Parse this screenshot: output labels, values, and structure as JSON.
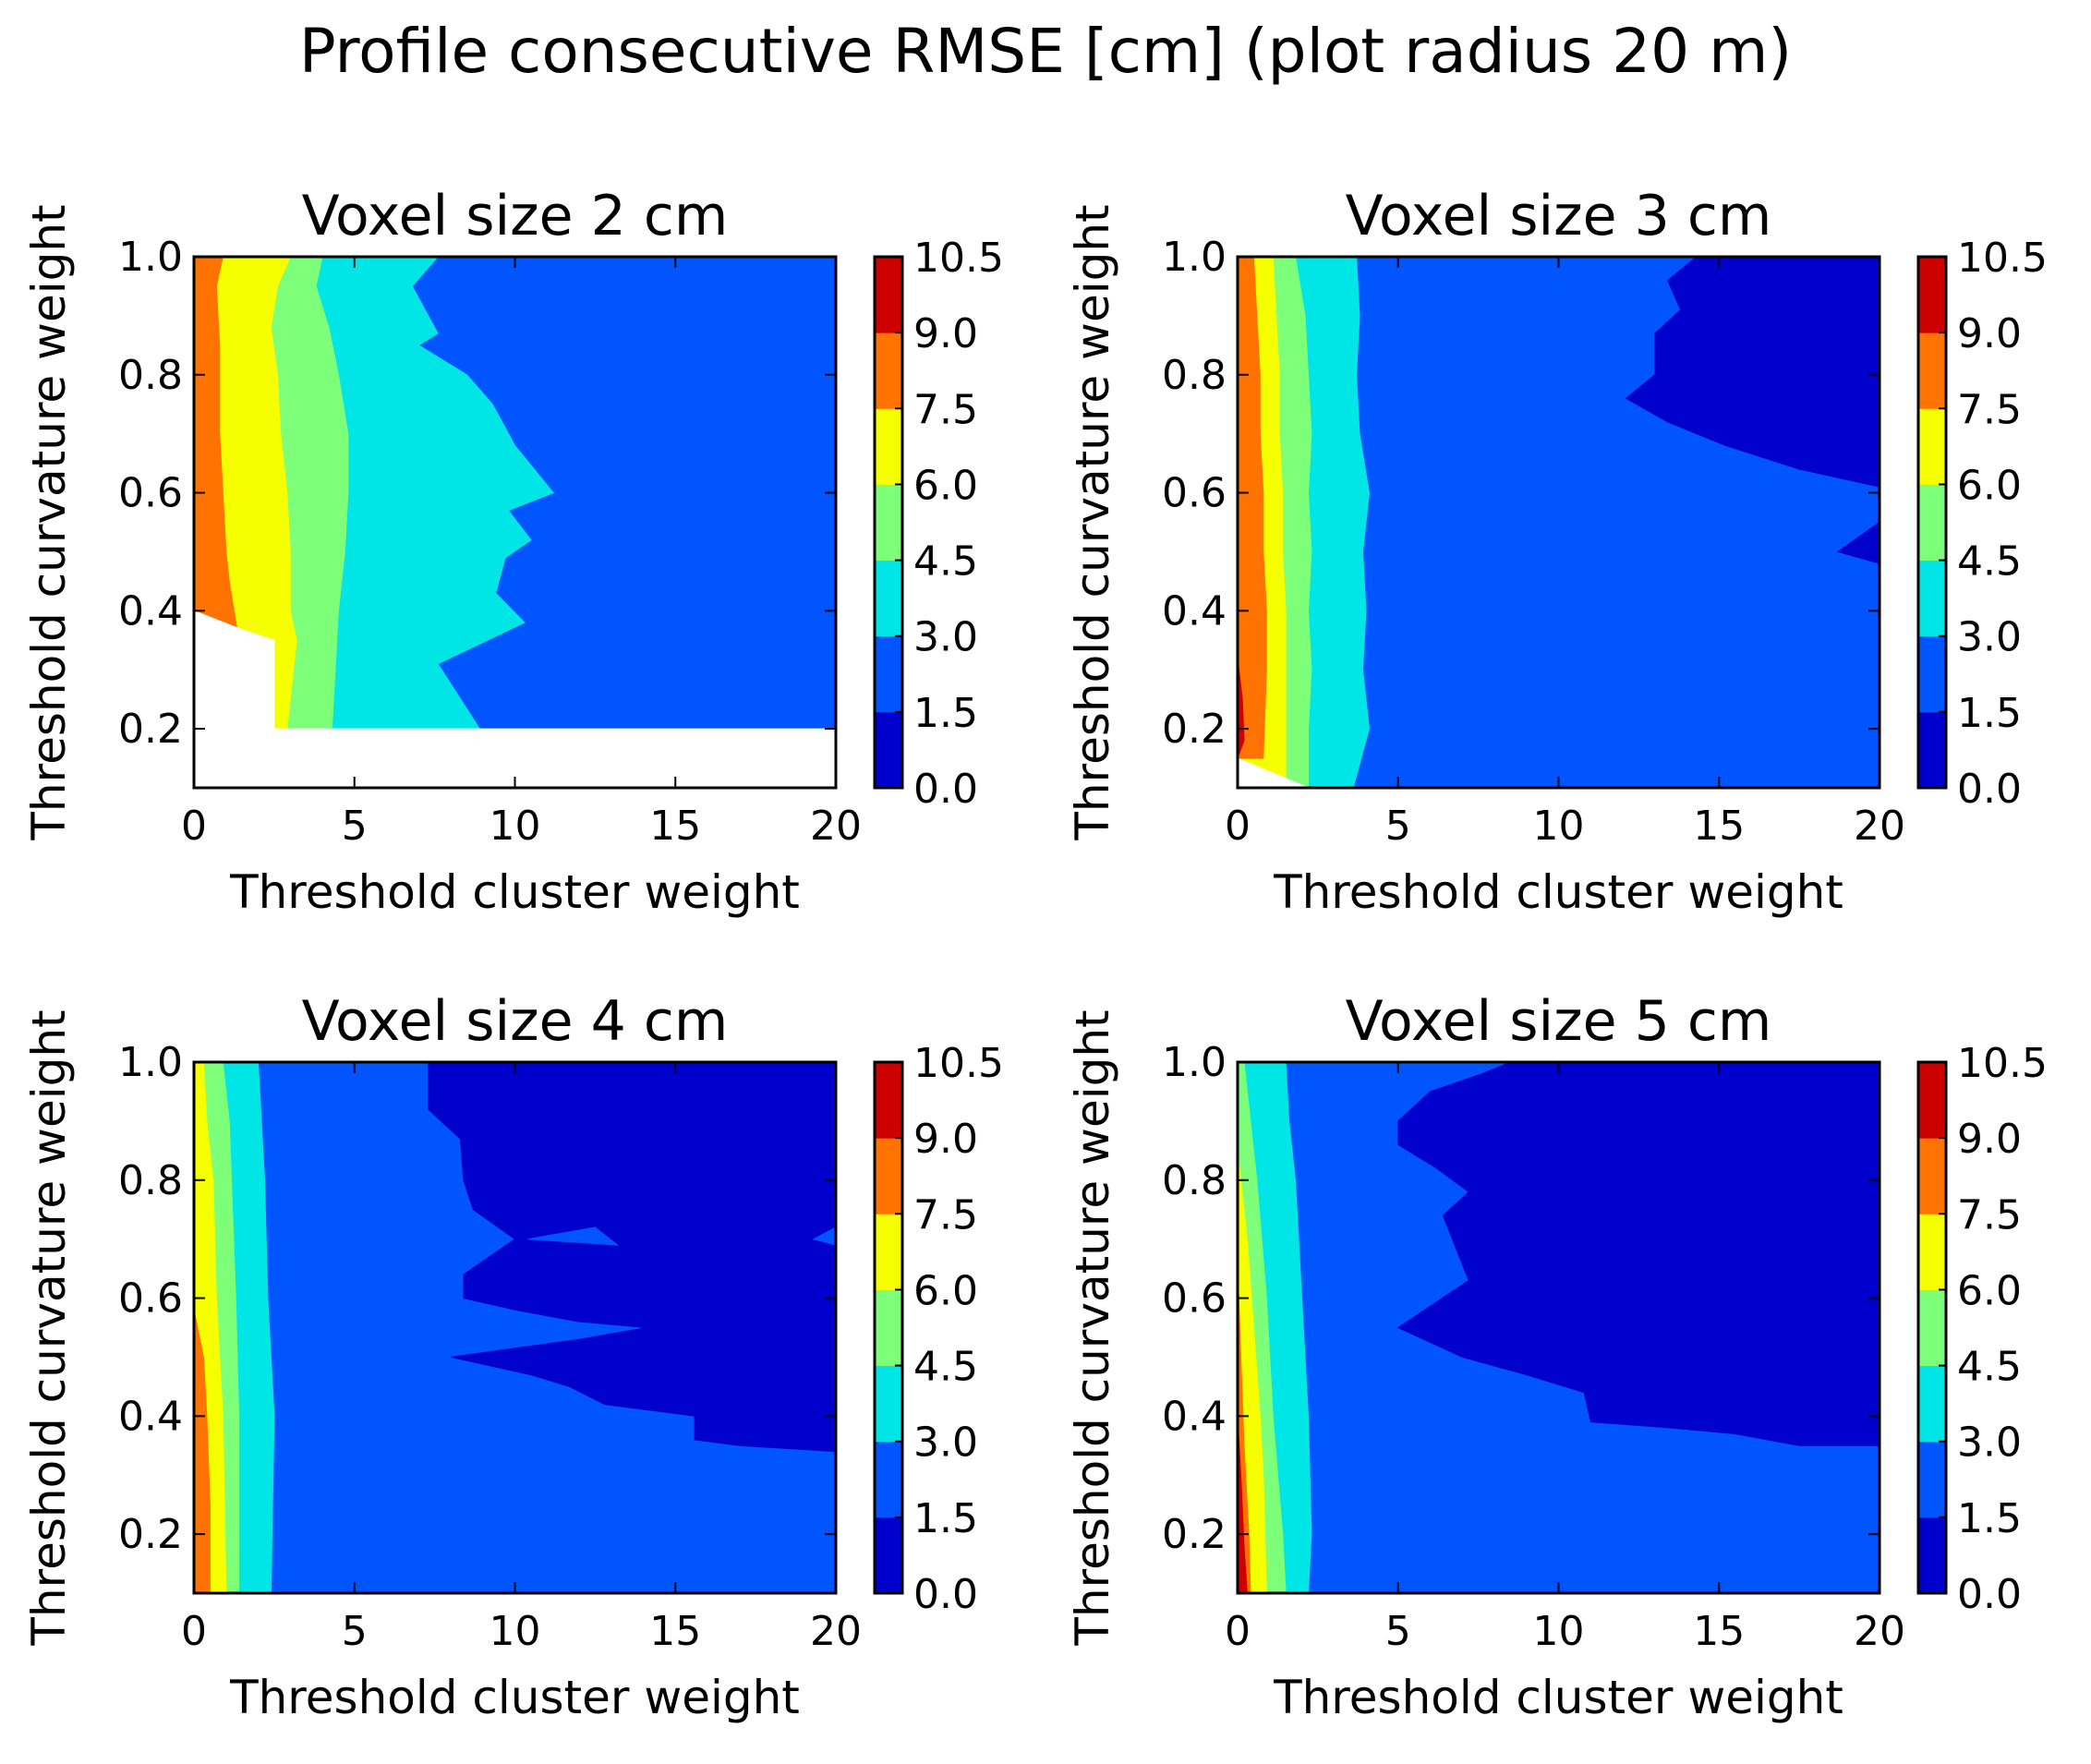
{
  "figure": {
    "suptitle": "Profile consecutive RMSE [cm] (plot radius 20 m)"
  },
  "colorbar": {
    "levels": [
      0.0,
      1.5,
      3.0,
      4.5,
      6.0,
      7.5,
      9.0,
      10.5
    ],
    "tick_labels": [
      "0.0",
      "1.5",
      "3.0",
      "4.5",
      "6.0",
      "7.5",
      "9.0",
      "10.5"
    ],
    "band_colors": [
      "#0000cd",
      "#0055ff",
      "#00e6e6",
      "#7dff7a",
      "#f6ff00",
      "#ff7300",
      "#cd0000"
    ]
  },
  "chart_data": [
    {
      "type": "filled-contour",
      "title": "Voxel size 2 cm",
      "xlabel": "Threshold cluster weight",
      "ylabel": "Threshold curvature weight",
      "xlim": [
        0,
        20
      ],
      "ylim": [
        0.1,
        1.0
      ],
      "xticks": [
        "0",
        "5",
        "10",
        "15",
        "20"
      ],
      "yticks": [
        "0.2",
        "0.4",
        "0.6",
        "0.8",
        "1.0"
      ],
      "level_regions": [
        {
          "level": "7.5-9.0",
          "boundary": [
            [
              0.05,
              1.0
            ],
            [
              0.05,
              0.4
            ],
            [
              1.4,
              0.35
            ]
          ]
        },
        {
          "level": "6.0-7.5",
          "boundary": [
            [
              0.9,
              1.0
            ],
            [
              2.5,
              0.2
            ],
            [
              3.2,
              0.35
            ]
          ]
        },
        {
          "level": "4.5-6.0",
          "boundary": [
            [
              3.0,
              1.0
            ],
            [
              4.3,
              0.2
            ],
            [
              4.8,
              0.6
            ]
          ]
        },
        {
          "level": "3.0-4.5",
          "boundary": [
            [
              4.0,
              1.0
            ],
            [
              11.2,
              0.6
            ],
            [
              8.9,
              0.2
            ]
          ]
        },
        {
          "level": "1.5-3.0",
          "boundary": [
            [
              7.6,
              1.0
            ],
            [
              20,
              1.0
            ],
            [
              20,
              0.2
            ]
          ]
        },
        {
          "level": "no data",
          "boundary": [
            [
              0,
              0.1
            ],
            [
              20,
              0.1
            ],
            [
              20,
              0.2
            ],
            [
              2.5,
              0.2
            ],
            [
              2.5,
              0.35
            ],
            [
              0,
              0.4
            ]
          ]
        }
      ]
    },
    {
      "type": "filled-contour",
      "title": "Voxel size 3 cm",
      "xlabel": "Threshold cluster weight",
      "ylabel": "Threshold curvature weight",
      "xlim": [
        0,
        20
      ],
      "ylim": [
        0.1,
        1.0
      ],
      "xticks": [
        "0",
        "5",
        "10",
        "15",
        "20"
      ],
      "yticks": [
        "0.2",
        "0.4",
        "0.6",
        "0.8",
        "1.0"
      ],
      "level_regions": [
        {
          "level": "9.0-10.5",
          "boundary": [
            [
              0,
              0.32
            ],
            [
              0,
              0.15
            ]
          ]
        },
        {
          "level": "7.5-9.0",
          "boundary": [
            [
              0,
              0.92
            ],
            [
              0.9,
              0.12
            ]
          ]
        },
        {
          "level": "6.0-7.5",
          "boundary": [
            [
              0.5,
              1.0
            ],
            [
              1.5,
              0.1
            ]
          ]
        },
        {
          "level": "4.5-6.0",
          "boundary": [
            [
              1.1,
              1.0
            ],
            [
              2.2,
              0.1
            ]
          ]
        },
        {
          "level": "3.0-4.5",
          "boundary": [
            [
              1.8,
              1.0
            ],
            [
              4.1,
              0.1
            ]
          ]
        },
        {
          "level": "1.5-3.0",
          "boundary": [
            [
              3.7,
              1.0
            ],
            [
              20,
              0.1
            ]
          ]
        },
        {
          "level": "0.0-1.5",
          "boundary": [
            [
              14.3,
              1.0
            ],
            [
              20,
              0.61
            ],
            [
              12.1,
              0.76
            ]
          ]
        }
      ]
    },
    {
      "type": "filled-contour",
      "title": "Voxel size 4 cm",
      "xlabel": "Threshold cluster weight",
      "ylabel": "Threshold curvature weight",
      "xlim": [
        0,
        20
      ],
      "ylim": [
        0.1,
        1.0
      ],
      "xticks": [
        "0",
        "5",
        "10",
        "15",
        "20"
      ],
      "yticks": [
        "0.2",
        "0.4",
        "0.6",
        "0.8",
        "1.0"
      ],
      "level_regions": [
        {
          "level": "7.5-9.0",
          "boundary": [
            [
              0,
              0.58
            ],
            [
              0.5,
              0.1
            ]
          ]
        },
        {
          "level": "6.0-7.5",
          "boundary": [
            [
              0,
              0.93
            ],
            [
              1.0,
              0.1
            ]
          ]
        },
        {
          "level": "4.5-6.0",
          "boundary": [
            [
              0.3,
              1.0
            ],
            [
              1.4,
              0.1
            ]
          ]
        },
        {
          "level": "3.0-4.5",
          "boundary": [
            [
              0.9,
              1.0
            ],
            [
              2.4,
              0.1
            ]
          ]
        },
        {
          "level": "1.5-3.0",
          "boundary": [
            [
              2.0,
              1.0
            ],
            [
              20,
              0.1
            ]
          ]
        },
        {
          "level": "0.0-1.5",
          "boundary": [
            [
              7.3,
              1.0
            ],
            [
              20,
              1.0
            ],
            [
              20,
              0.34
            ],
            [
              8.0,
              0.5
            ]
          ]
        }
      ]
    },
    {
      "type": "filled-contour",
      "title": "Voxel size 5 cm",
      "xlabel": "Threshold cluster weight",
      "ylabel": "Threshold curvature weight",
      "xlim": [
        0,
        20
      ],
      "ylim": [
        0.1,
        1.0
      ],
      "xticks": [
        "0",
        "5",
        "10",
        "15",
        "20"
      ],
      "yticks": [
        "0.2",
        "0.4",
        "0.6",
        "0.8",
        "1.0"
      ],
      "level_regions": [
        {
          "level": "7.5-9.0",
          "boundary": [
            [
              0,
              0.4
            ],
            [
              0.4,
              0.1
            ]
          ]
        },
        {
          "level": "6.0-7.5",
          "boundary": [
            [
              0,
              0.66
            ],
            [
              0.9,
              0.1
            ]
          ]
        },
        {
          "level": "4.5-6.0",
          "boundary": [
            [
              0,
              0.85
            ],
            [
              1.5,
              0.1
            ]
          ]
        },
        {
          "level": "3.0-4.5",
          "boundary": [
            [
              0.2,
              1.0
            ],
            [
              2.3,
              0.1
            ]
          ]
        },
        {
          "level": "1.5-3.0",
          "boundary": [
            [
              1.5,
              1.0
            ],
            [
              20,
              0.1
            ]
          ]
        },
        {
          "level": "0.0-1.5",
          "boundary": [
            [
              8.5,
              1.0
            ],
            [
              20,
              1.0
            ],
            [
              20,
              0.35
            ],
            [
              5.0,
              0.55
            ]
          ]
        }
      ]
    }
  ]
}
